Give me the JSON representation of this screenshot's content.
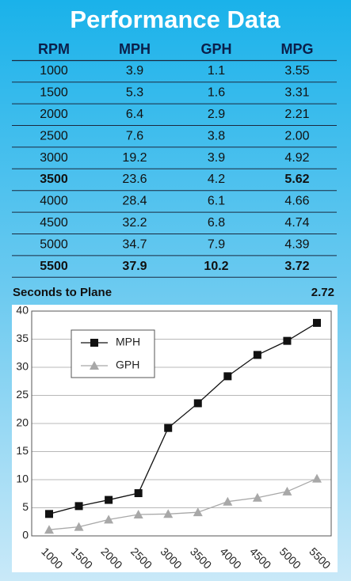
{
  "title": "Performance Data",
  "table": {
    "header": [
      "RPM",
      "MPH",
      "GPH",
      "MPG"
    ],
    "rows": [
      [
        "1000",
        "3.9",
        "1.1",
        "3.55"
      ],
      [
        "1500",
        "5.3",
        "1.6",
        "3.31"
      ],
      [
        "2000",
        "6.4",
        "2.9",
        "2.21"
      ],
      [
        "2500",
        "7.6",
        "3.8",
        "2.00"
      ],
      [
        "3000",
        "19.2",
        "3.9",
        "4.92"
      ],
      [
        "3500",
        "23.6",
        "4.2",
        "5.62"
      ],
      [
        "4000",
        "28.4",
        "6.1",
        "4.66"
      ],
      [
        "4500",
        "32.2",
        "6.8",
        "4.74"
      ],
      [
        "5000",
        "34.7",
        "7.9",
        "4.39"
      ],
      [
        "5500",
        "37.9",
        "10.2",
        "3.72"
      ]
    ],
    "bold_cells": [
      [
        5,
        0
      ],
      [
        5,
        3
      ],
      [
        9,
        0
      ],
      [
        9,
        1
      ],
      [
        9,
        2
      ],
      [
        9,
        3
      ]
    ]
  },
  "seconds_to_plane": {
    "label": "Seconds to Plane",
    "value": "2.72"
  },
  "chart_data": {
    "type": "line",
    "categories": [
      "1000",
      "1500",
      "2000",
      "2500",
      "3000",
      "3500",
      "4000",
      "4500",
      "5000",
      "5500"
    ],
    "series": [
      {
        "name": "MPH",
        "color": "#111111",
        "marker": "square",
        "values": [
          3.9,
          5.3,
          6.4,
          7.6,
          19.2,
          23.6,
          28.4,
          32.2,
          34.7,
          37.9
        ]
      },
      {
        "name": "GPH",
        "color": "#a8a8a8",
        "marker": "triangle",
        "values": [
          1.1,
          1.6,
          2.9,
          3.8,
          3.9,
          4.2,
          6.1,
          6.8,
          7.9,
          10.2
        ]
      }
    ],
    "ylim": [
      0,
      40
    ],
    "yticks": [
      0,
      5,
      10,
      15,
      20,
      25,
      30,
      35,
      40
    ],
    "grid": true,
    "legend": "top-left"
  }
}
